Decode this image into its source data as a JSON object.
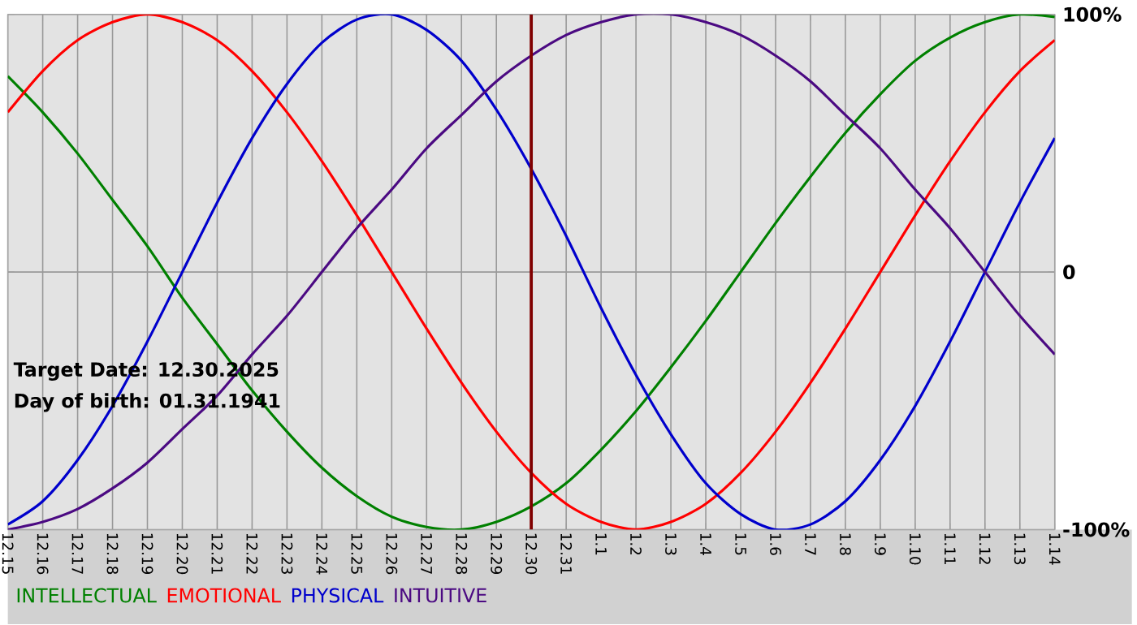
{
  "chart_data": {
    "type": "line",
    "categories": [
      "12.15",
      "12.16",
      "12.17",
      "12.18",
      "12.19",
      "12.20",
      "12.21",
      "12.22",
      "12.23",
      "12.24",
      "12.25",
      "12.26",
      "12.27",
      "12.28",
      "12.29",
      "12.30",
      "12.31",
      "1.1",
      "1.2",
      "1.3",
      "1.4",
      "1.5",
      "1.6",
      "1.7",
      "1.8",
      "1.9",
      "1.10",
      "1.11",
      "1.12",
      "1.13",
      "1.14"
    ],
    "series": [
      {
        "name": "INTELLECTUAL",
        "color": "#008000",
        "values": [
          76,
          62,
          46,
          28,
          10,
          -10,
          -28,
          -46,
          -62,
          -76,
          -87,
          -95,
          -99,
          -100,
          -97,
          -91,
          -82,
          -69,
          -54,
          -37,
          -19,
          0,
          19,
          37,
          54,
          69,
          82,
          91,
          97,
          100,
          99
        ]
      },
      {
        "name": "EMOTIONAL",
        "color": "#ff0000",
        "values": [
          62,
          78,
          90,
          97,
          100,
          97,
          90,
          78,
          62,
          43,
          22,
          0,
          -22,
          -43,
          -62,
          -78,
          -90,
          -97,
          -100,
          -97,
          -90,
          -78,
          -62,
          -43,
          -22,
          0,
          22,
          43,
          62,
          78,
          90
        ]
      },
      {
        "name": "PHYSICAL",
        "color": "#0000cc",
        "values": [
          -98,
          -89,
          -73,
          -52,
          -27,
          0,
          27,
          52,
          73,
          89,
          98,
          100,
          94,
          82,
          63,
          40,
          14,
          -14,
          -40,
          -63,
          -82,
          -94,
          -100,
          -98,
          -89,
          -73,
          -52,
          -27,
          0,
          27,
          52
        ]
      },
      {
        "name": "INTUITIVE",
        "color": "#4b0a82",
        "values": [
          -100,
          -97,
          -92,
          -84,
          -74,
          -61,
          -48,
          -32,
          -17,
          0,
          17,
          32,
          48,
          61,
          74,
          84,
          92,
          97,
          100,
          100,
          97,
          92,
          84,
          74,
          61,
          48,
          32,
          17,
          0,
          -17,
          -32
        ]
      }
    ],
    "ylim": [
      -100,
      100
    ],
    "yticks": [
      {
        "value": -100,
        "label": "-100%"
      },
      0,
      {
        "value": 100,
        "label": "100%"
      }
    ],
    "grid": true,
    "legend": "bottom",
    "ref_lines": [
      {
        "axis": "x",
        "value": "12.30",
        "color": "#800000"
      }
    ],
    "annotations": [
      "Target Date: 12.30.2025",
      "Day of birth: 01.31.1941"
    ]
  }
}
